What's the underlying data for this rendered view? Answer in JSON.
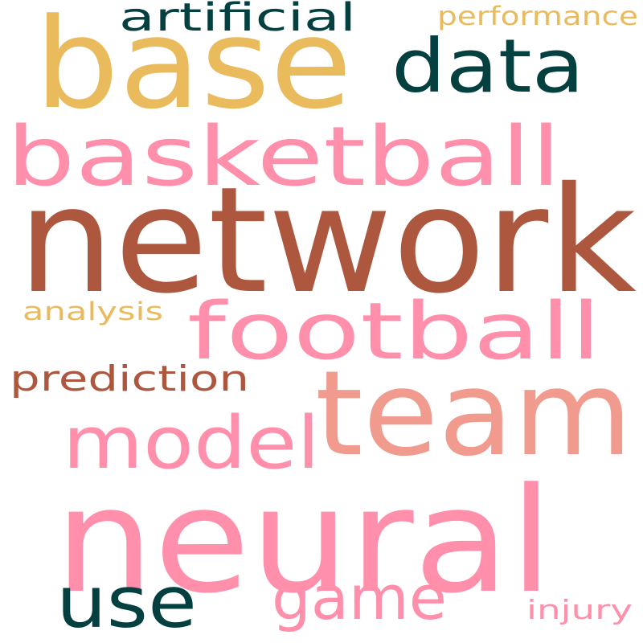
{
  "word_cloud": {
    "background": "#ffffff",
    "palette": {
      "brown": "#ad573f",
      "pink": "#ff8fab",
      "salmon": "#f09b8e",
      "dark_teal": "#03403f",
      "gold": "#e9bb5c"
    },
    "words": [
      {
        "text": "network",
        "color": "#ad573f"
      },
      {
        "text": "neural",
        "color": "#ff8fab"
      },
      {
        "text": "base",
        "color": "#e9bb5c"
      },
      {
        "text": "team",
        "color": "#f09b8e"
      },
      {
        "text": "basketball",
        "color": "#ff8fab"
      },
      {
        "text": "football",
        "color": "#ff8fab"
      },
      {
        "text": "data",
        "color": "#03403f"
      },
      {
        "text": "model",
        "color": "#ff8fab"
      },
      {
        "text": "use",
        "color": "#03403f"
      },
      {
        "text": "game",
        "color": "#ff8fab"
      },
      {
        "text": "artificial",
        "color": "#03403f"
      },
      {
        "text": "prediction",
        "color": "#ad573f"
      },
      {
        "text": "performance",
        "color": "#e9bb5c"
      },
      {
        "text": "analysis",
        "color": "#e9bb5c"
      },
      {
        "text": "injury",
        "color": "#ff8fab"
      }
    ]
  }
}
